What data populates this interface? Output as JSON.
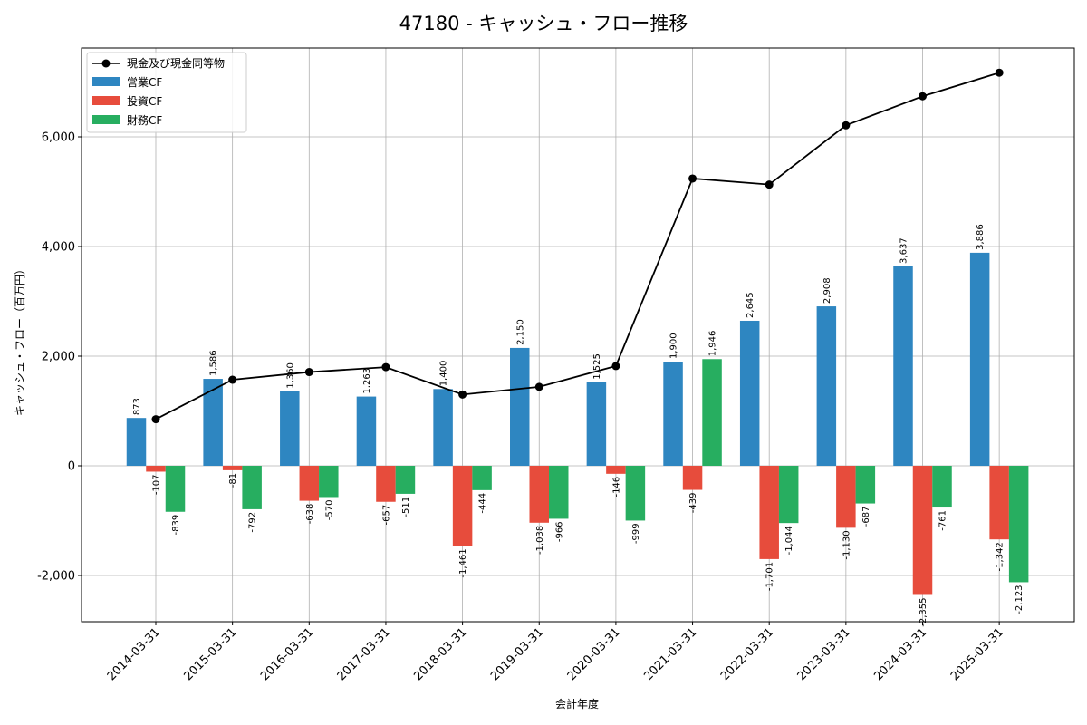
{
  "chart_data": {
    "type": "bar",
    "title": "47180 - キャッシュ・フロー推移",
    "xlabel": "会計年度",
    "ylabel": "キャッシュ・フロー（百万円）",
    "categories": [
      "2014-03-31",
      "2015-03-31",
      "2016-03-31",
      "2017-03-31",
      "2018-03-31",
      "2019-03-31",
      "2020-03-31",
      "2021-03-31",
      "2022-03-31",
      "2023-03-31",
      "2024-03-31",
      "2025-03-31"
    ],
    "ylim": [
      -2850,
      7650
    ],
    "yticks": [
      -2000,
      0,
      2000,
      4000,
      6000
    ],
    "ytick_labels": [
      "-2,000",
      "0",
      "2,000",
      "4,000",
      "6,000"
    ],
    "grid": true,
    "legend": "top-left",
    "series": [
      {
        "name": "営業CF",
        "type": "bar",
        "color": "#2e86c1",
        "values": [
          873,
          1586,
          1360,
          1263,
          1400,
          2150,
          1525,
          1900,
          2645,
          2908,
          3637,
          3886
        ],
        "labels": [
          "873",
          "1,586",
          "1,360",
          "1,263",
          "1,400",
          "2,150",
          "1,525",
          "1,900",
          "2,645",
          "2,908",
          "3,637",
          "3,886"
        ]
      },
      {
        "name": "投資CF",
        "type": "bar",
        "color": "#e74c3c",
        "values": [
          -107,
          -81,
          -638,
          -657,
          -1461,
          -1038,
          -146,
          -439,
          -1701,
          -1130,
          -2355,
          -1342
        ],
        "labels": [
          "-107",
          "-81",
          "-638",
          "-657",
          "-1,461",
          "-1,038",
          "-146",
          "-439",
          "-1,701",
          "-1,130",
          "-2,355",
          "-1,342"
        ]
      },
      {
        "name": "財務CF",
        "type": "bar",
        "color": "#27ae60",
        "values": [
          -839,
          -792,
          -570,
          -511,
          -444,
          -966,
          -999,
          1946,
          -1044,
          -687,
          -761,
          -2123
        ],
        "labels": [
          "-839",
          "-792",
          "-570",
          "-511",
          "-444",
          "-966",
          "-999",
          "1,946",
          "-1,044",
          "-687",
          "-761",
          "-2,123"
        ]
      },
      {
        "name": "現金及び現金同等物",
        "type": "line",
        "color": "#000000",
        "values": [
          850,
          1570,
          1710,
          1800,
          1300,
          1440,
          1820,
          5240,
          5130,
          6210,
          6740,
          7170
        ]
      }
    ]
  }
}
